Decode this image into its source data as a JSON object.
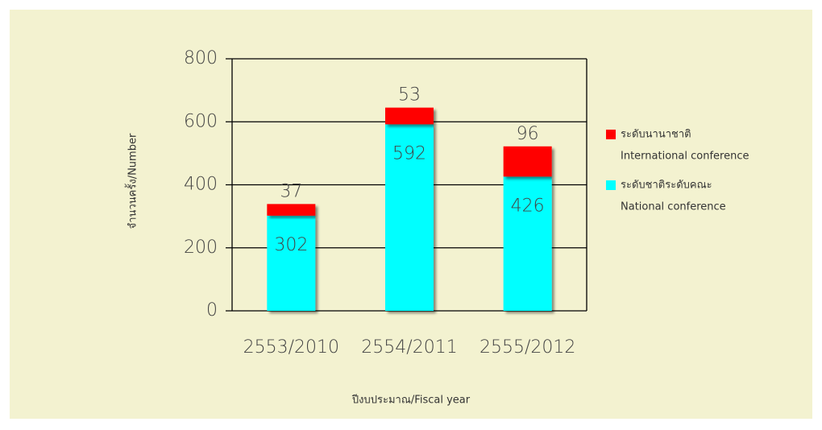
{
  "chart_data": {
    "type": "stacked_bar",
    "categories": [
      "2553/2010",
      "2554/2011",
      "2555/2012"
    ],
    "series": [
      {
        "name": "ระดับชาติระดับคณะ",
        "label_en": "National conference",
        "color": "#00ffff",
        "values": [
          302,
          592,
          426
        ]
      },
      {
        "name": "ระดับนานาชาติ",
        "label_en": "International conference",
        "color": "#ff0000",
        "values": [
          37,
          53,
          96
        ]
      }
    ],
    "ylim": [
      0,
      800
    ],
    "yticks": [
      0,
      200,
      400,
      600,
      800
    ],
    "grid": true,
    "ylabel": "จำนวนครั้ง/Number",
    "xlabel": "ปีงบประมาณ/Fiscal year"
  }
}
